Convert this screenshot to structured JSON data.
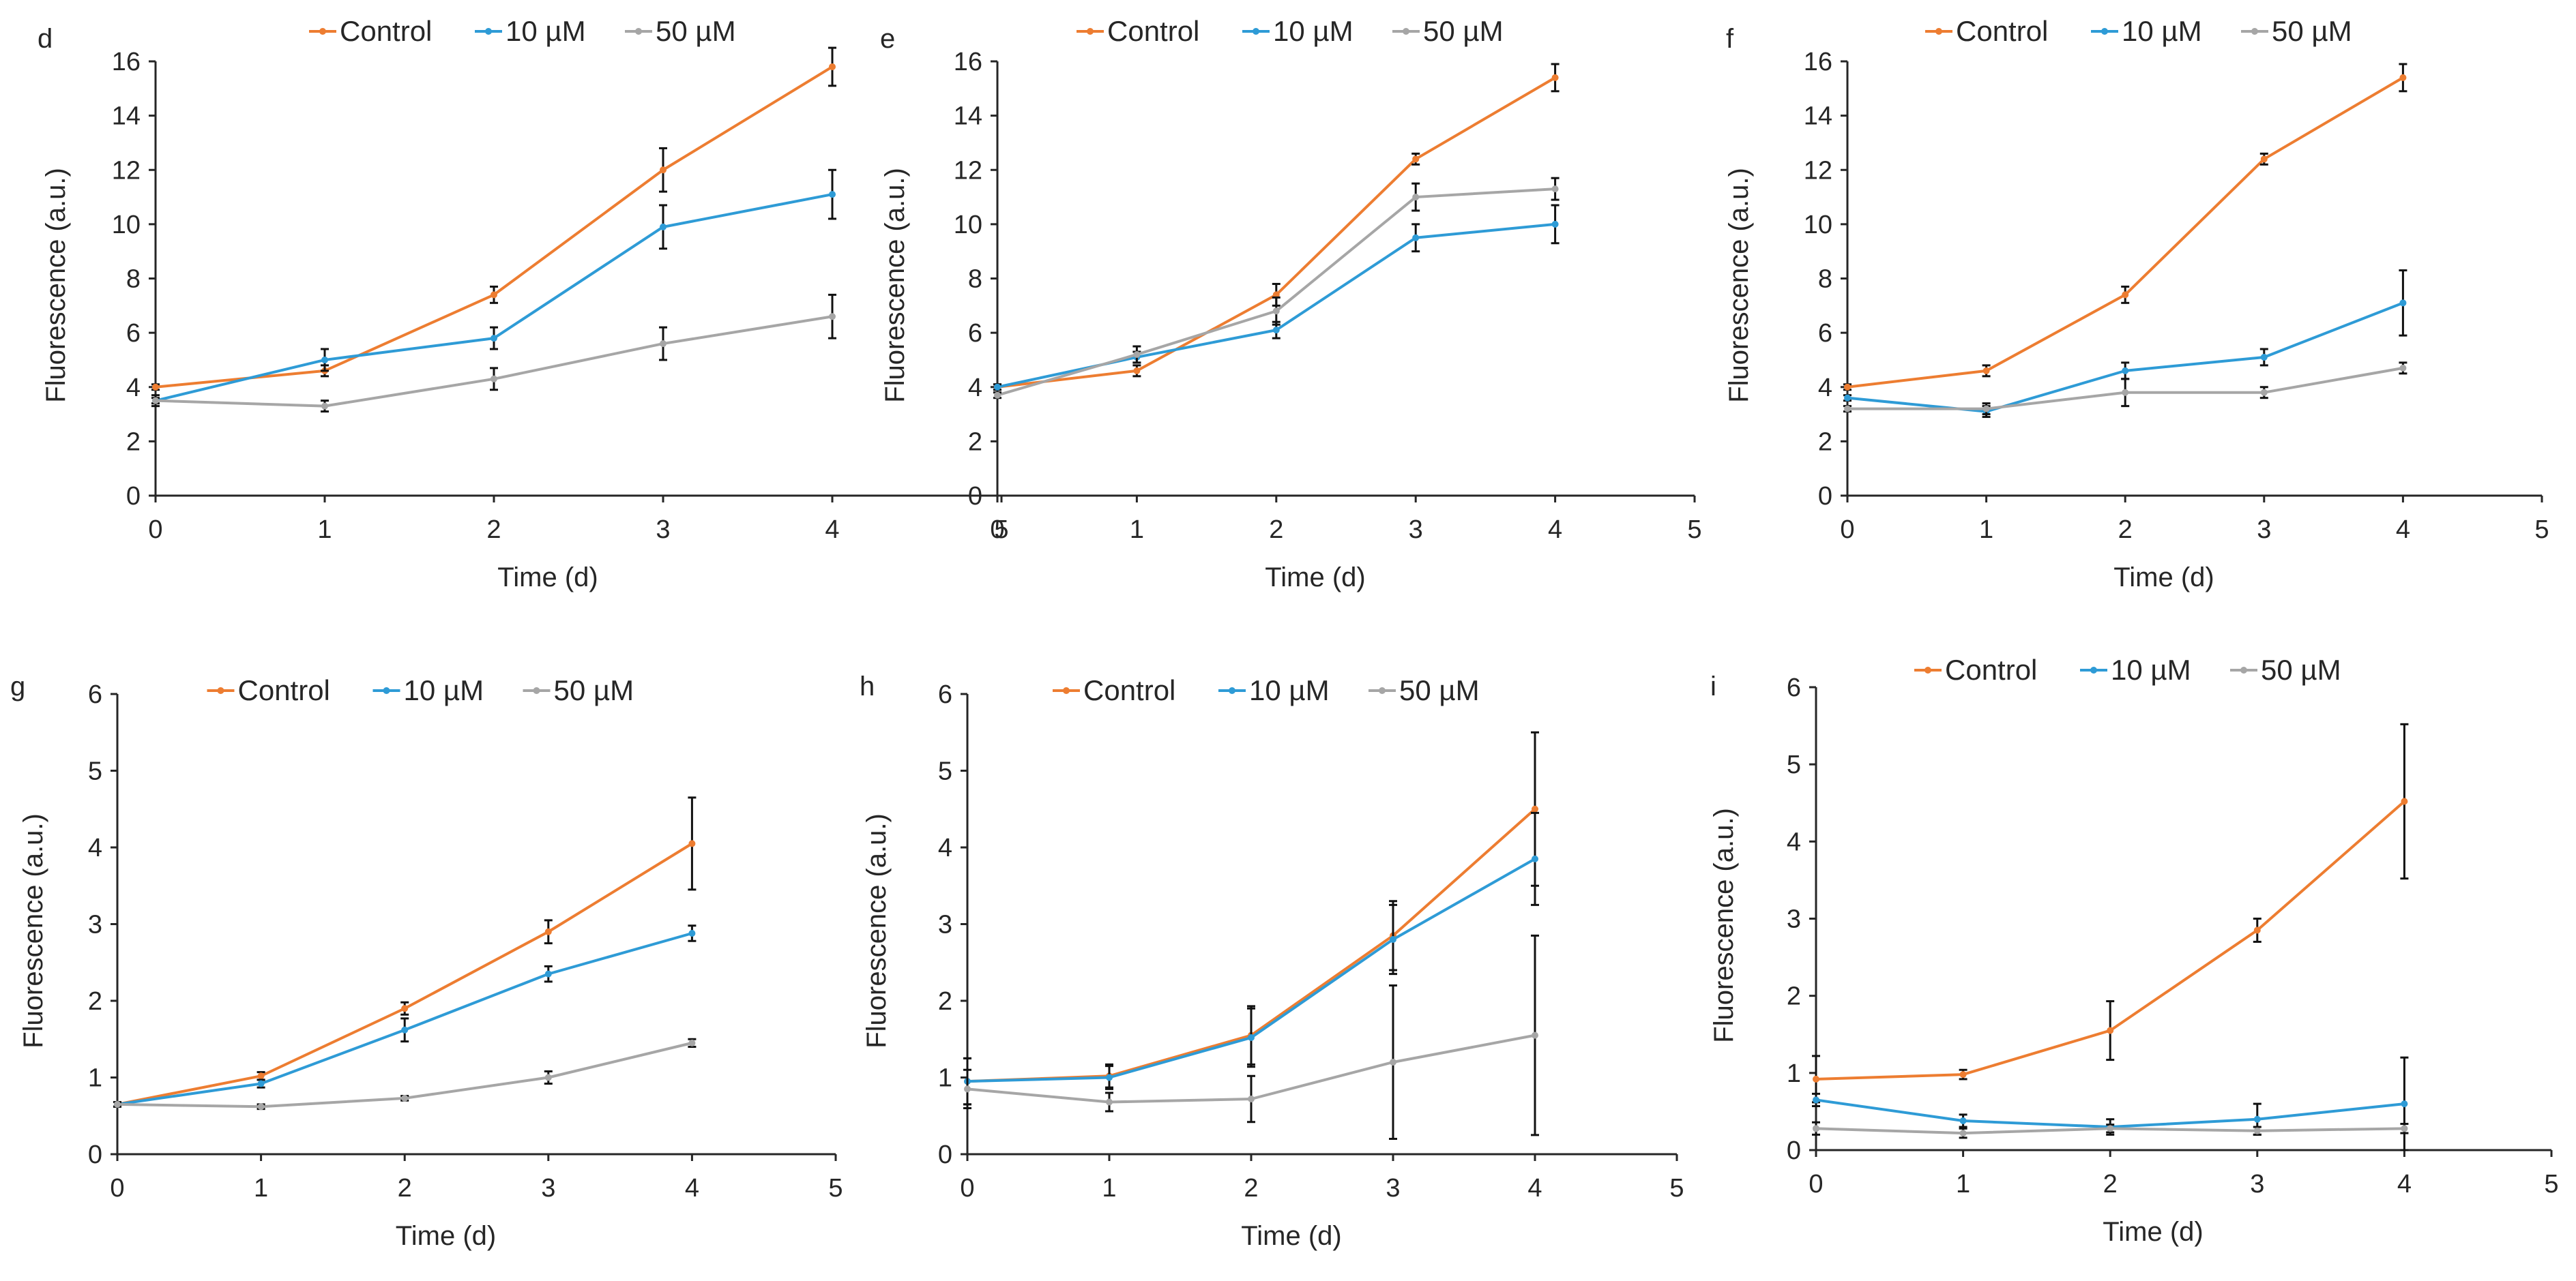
{
  "colors": {
    "Control": "#ED7D31",
    "10 µM": "#2E9BD6",
    "50 µM": "#A6A6A6",
    "axis": "#262626",
    "error": "#111111"
  },
  "chart_data": [
    {
      "panel": "d",
      "type": "line",
      "xlabel": "Time (d)",
      "ylabel": "Fluorescence (a.u.)",
      "xlim": [
        0,
        5
      ],
      "ylim": [
        0,
        16
      ],
      "xticks": [
        0,
        1,
        2,
        3,
        4,
        5
      ],
      "yticks": [
        0,
        2,
        4,
        6,
        8,
        10,
        12,
        14,
        16
      ],
      "legend_position": "top",
      "x": [
        0,
        1,
        2,
        3,
        4
      ],
      "series": [
        {
          "name": "Control",
          "values": [
            4.0,
            4.6,
            7.4,
            12.0,
            15.8
          ],
          "errors": [
            0.1,
            0.2,
            0.3,
            0.8,
            0.7
          ]
        },
        {
          "name": "10 µM",
          "values": [
            3.5,
            5.0,
            5.8,
            9.9,
            11.1
          ],
          "errors": [
            0.2,
            0.4,
            0.4,
            0.8,
            0.9
          ]
        },
        {
          "name": "50 µM",
          "values": [
            3.5,
            3.3,
            4.3,
            5.6,
            6.6
          ],
          "errors": [
            0.1,
            0.2,
            0.4,
            0.6,
            0.8
          ]
        }
      ]
    },
    {
      "panel": "e",
      "type": "line",
      "xlabel": "Time (d)",
      "ylabel": "Fluorescence (a.u.)",
      "xlim": [
        0,
        5
      ],
      "ylim": [
        0,
        16
      ],
      "xticks": [
        0,
        1,
        2,
        3,
        4,
        5
      ],
      "yticks": [
        0,
        2,
        4,
        6,
        8,
        10,
        12,
        14,
        16
      ],
      "legend_position": "top",
      "x": [
        0,
        1,
        2,
        3,
        4
      ],
      "series": [
        {
          "name": "Control",
          "values": [
            4.0,
            4.6,
            7.4,
            12.4,
            15.4
          ],
          "errors": [
            0.1,
            0.2,
            0.4,
            0.2,
            0.5
          ]
        },
        {
          "name": "10 µM",
          "values": [
            4.0,
            5.1,
            6.1,
            9.5,
            10.0
          ],
          "errors": [
            0.1,
            0.2,
            0.3,
            0.5,
            0.7
          ]
        },
        {
          "name": "50 µM",
          "values": [
            3.7,
            5.2,
            6.8,
            11.0,
            11.3
          ],
          "errors": [
            0.1,
            0.3,
            0.5,
            0.5,
            0.4
          ]
        }
      ]
    },
    {
      "panel": "f",
      "type": "line",
      "xlabel": "Time (d)",
      "ylabel": "Fluorescence (a.u.)",
      "xlim": [
        0,
        5
      ],
      "ylim": [
        0,
        16
      ],
      "xticks": [
        0,
        1,
        2,
        3,
        4,
        5
      ],
      "yticks": [
        0,
        2,
        4,
        6,
        8,
        10,
        12,
        14,
        16
      ],
      "legend_position": "top",
      "x": [
        0,
        1,
        2,
        3,
        4
      ],
      "series": [
        {
          "name": "Control",
          "values": [
            4.0,
            4.6,
            7.4,
            12.4,
            15.4
          ],
          "errors": [
            0.1,
            0.2,
            0.3,
            0.2,
            0.5
          ]
        },
        {
          "name": "10 µM",
          "values": [
            3.6,
            3.1,
            4.6,
            5.1,
            7.1
          ],
          "errors": [
            0.1,
            0.2,
            0.3,
            0.3,
            1.2
          ]
        },
        {
          "name": "50 µM",
          "values": [
            3.2,
            3.2,
            3.8,
            3.8,
            4.7
          ],
          "errors": [
            0.1,
            0.2,
            0.5,
            0.2,
            0.2
          ]
        }
      ]
    },
    {
      "panel": "g",
      "type": "line",
      "xlabel": "Time (d)",
      "ylabel": "Fluorescence (a.u.)",
      "xlim": [
        0,
        5
      ],
      "ylim": [
        0,
        6
      ],
      "xticks": [
        0,
        1,
        2,
        3,
        4,
        5
      ],
      "yticks": [
        0,
        1,
        2,
        3,
        4,
        5,
        6
      ],
      "legend_position": "top",
      "x": [
        0,
        1,
        2,
        3,
        4
      ],
      "series": [
        {
          "name": "Control",
          "values": [
            0.65,
            1.02,
            1.9,
            2.9,
            4.05
          ],
          "errors": [
            0.03,
            0.05,
            0.08,
            0.15,
            0.6
          ]
        },
        {
          "name": "10 µM",
          "values": [
            0.65,
            0.92,
            1.62,
            2.35,
            2.88
          ],
          "errors": [
            0.03,
            0.05,
            0.15,
            0.1,
            0.1
          ]
        },
        {
          "name": "50 µM",
          "values": [
            0.65,
            0.62,
            0.73,
            1.0,
            1.45
          ],
          "errors": [
            0.03,
            0.03,
            0.03,
            0.08,
            0.05
          ]
        }
      ]
    },
    {
      "panel": "h",
      "type": "line",
      "xlabel": "Time (d)",
      "ylabel": "Fluorescence (a.u.)",
      "xlim": [
        0,
        5
      ],
      "ylim": [
        0,
        6
      ],
      "xticks": [
        0,
        1,
        2,
        3,
        4,
        5
      ],
      "yticks": [
        0,
        1,
        2,
        3,
        4,
        5,
        6
      ],
      "legend_position": "top",
      "x": [
        0,
        1,
        2,
        3,
        4
      ],
      "series": [
        {
          "name": "Control",
          "values": [
            0.95,
            1.02,
            1.55,
            2.85,
            4.5
          ],
          "errors": [
            0.3,
            0.15,
            0.38,
            0.45,
            1.0
          ]
        },
        {
          "name": "10 µM",
          "values": [
            0.95,
            1.0,
            1.52,
            2.8,
            3.85
          ],
          "errors": [
            0.3,
            0.15,
            0.38,
            0.45,
            0.6
          ]
        },
        {
          "name": "50 µM",
          "values": [
            0.85,
            0.68,
            0.72,
            1.2,
            1.55
          ],
          "errors": [
            0.25,
            0.12,
            0.3,
            1.0,
            1.3
          ]
        }
      ]
    },
    {
      "panel": "i",
      "type": "line",
      "xlabel": "Time (d)",
      "ylabel": "Fluorescence (a.u.)",
      "xlim": [
        0,
        5
      ],
      "ylim": [
        0,
        6
      ],
      "xticks": [
        0,
        1,
        2,
        3,
        4,
        5
      ],
      "yticks": [
        0,
        1,
        2,
        3,
        4,
        5,
        6
      ],
      "legend_position": "top",
      "x": [
        0,
        1,
        2,
        3,
        4
      ],
      "series": [
        {
          "name": "Control",
          "values": [
            0.92,
            0.98,
            1.55,
            2.85,
            4.52
          ],
          "errors": [
            0.3,
            0.06,
            0.38,
            0.15,
            1.0
          ]
        },
        {
          "name": "10 µM",
          "values": [
            0.65,
            0.38,
            0.3,
            0.4,
            0.6
          ],
          "errors": [
            0.08,
            0.08,
            0.1,
            0.2,
            0.6
          ]
        },
        {
          "name": "50 µM",
          "values": [
            0.28,
            0.22,
            0.28,
            0.25,
            0.28
          ],
          "errors": [
            0.08,
            0.06,
            0.05,
            0.05,
            0.06
          ]
        }
      ]
    }
  ]
}
